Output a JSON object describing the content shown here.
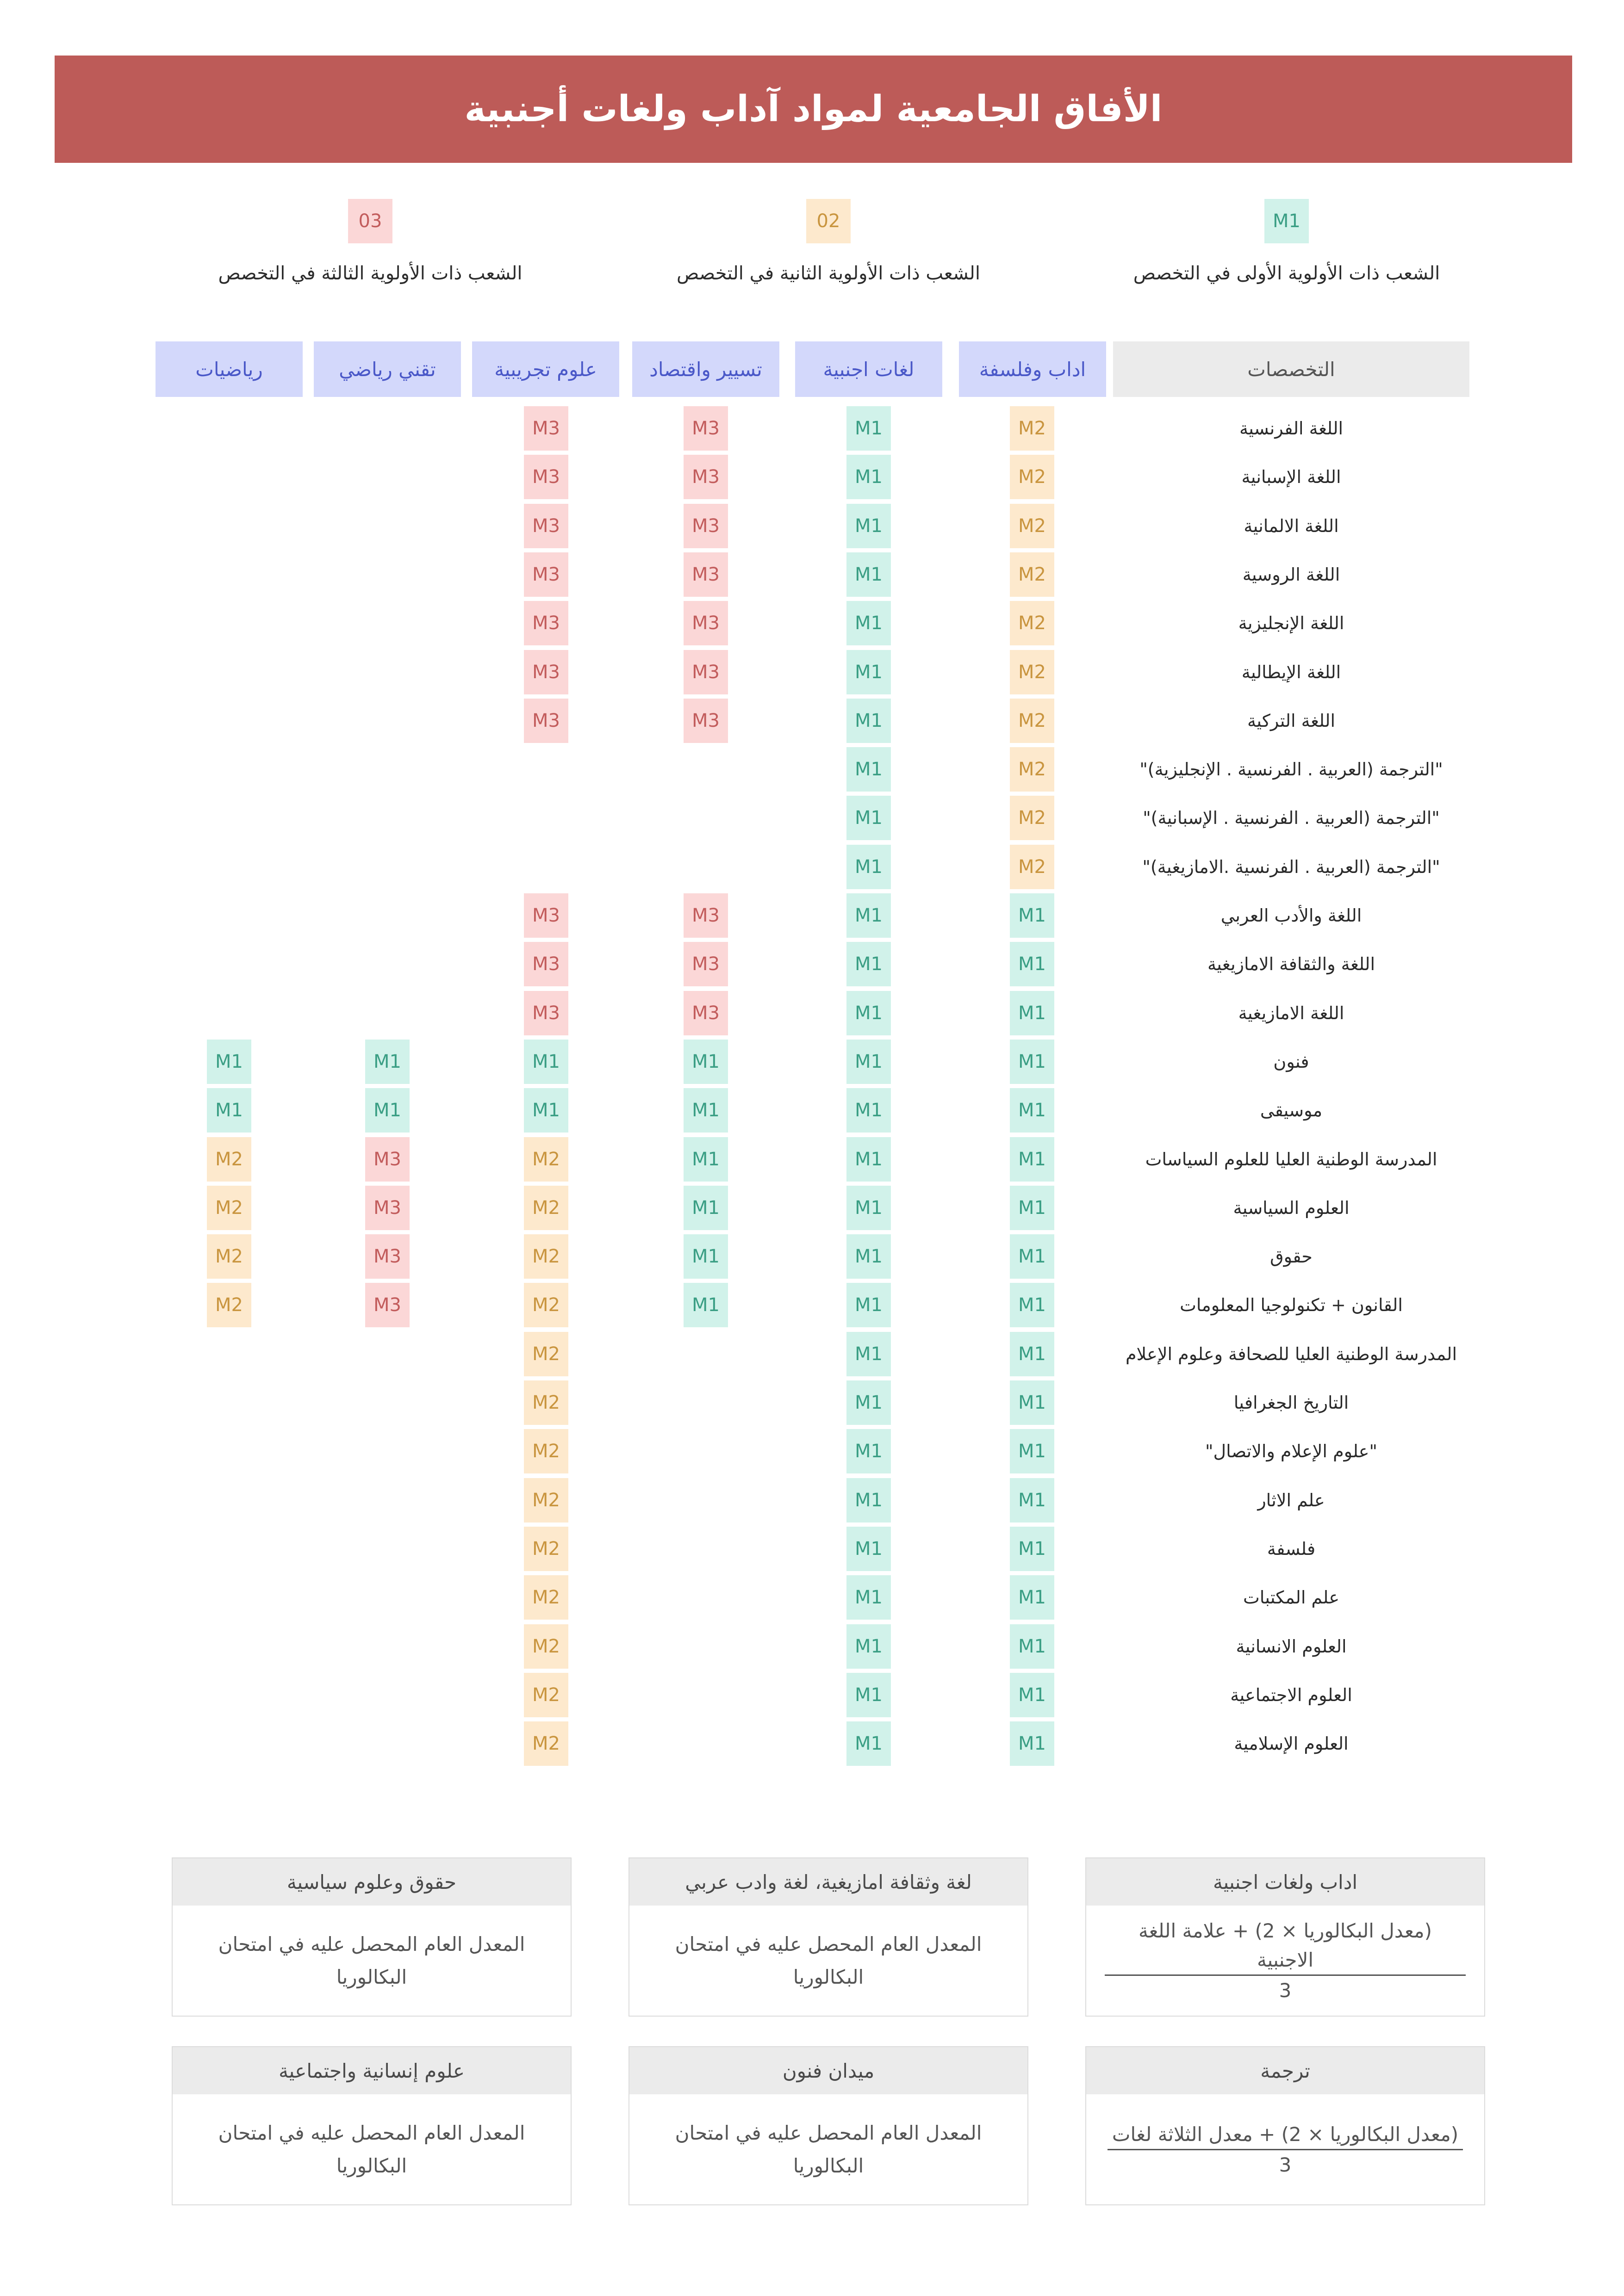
{
  "title": "الأفاق الجامعية لمواد آداب ولغات أجنبية",
  "legend": [
    {
      "badge": "M1",
      "caption": "الشعب ذات الأولوية الأولى في التخصص"
    },
    {
      "badge": "02",
      "caption": "الشعب ذات الأولوية الثانية في التخصص"
    },
    {
      "badge": "03",
      "caption": "الشعب ذات الأولوية الثالثة في التخصص"
    }
  ],
  "headers": {
    "specialties": "التخصصات",
    "columns": [
      "اداب وفلسفة",
      "لغات اجنبية",
      "تسيير واقتصاد",
      "علوم تجريبية",
      "تقني رياضي",
      "رياضيات"
    ]
  },
  "rows": [
    {
      "label": "اللغة الفرنسية",
      "values": [
        "M2",
        "M1",
        "M3",
        "M3",
        "",
        ""
      ]
    },
    {
      "label": "اللغة الإسبانية",
      "values": [
        "M2",
        "M1",
        "M3",
        "M3",
        "",
        ""
      ]
    },
    {
      "label": "اللغة الالمانية",
      "values": [
        "M2",
        "M1",
        "M3",
        "M3",
        "",
        ""
      ]
    },
    {
      "label": "اللغة الروسية",
      "values": [
        "M2",
        "M1",
        "M3",
        "M3",
        "",
        ""
      ]
    },
    {
      "label": "اللغة الإنجليزية",
      "values": [
        "M2",
        "M1",
        "M3",
        "M3",
        "",
        ""
      ]
    },
    {
      "label": "اللغة الإيطالية",
      "values": [
        "M2",
        "M1",
        "M3",
        "M3",
        "",
        ""
      ]
    },
    {
      "label": "اللغة التركية",
      "values": [
        "M2",
        "M1",
        "M3",
        "M3",
        "",
        ""
      ]
    },
    {
      "label": "\"الترجمة (العربية . الفرنسية . الإنجليزية)\"",
      "values": [
        "M2",
        "M1",
        "",
        "",
        "",
        ""
      ]
    },
    {
      "label": "\"الترجمة (العربية . الفرنسية . الإسبانية)\"",
      "values": [
        "M2",
        "M1",
        "",
        "",
        "",
        ""
      ]
    },
    {
      "label": "\"الترجمة (العربية . الفرنسية .الامازيغية)\"",
      "values": [
        "M2",
        "M1",
        "",
        "",
        "",
        ""
      ]
    },
    {
      "label": "اللغة والأدب العربي",
      "values": [
        "M1",
        "M1",
        "M3",
        "M3",
        "",
        ""
      ]
    },
    {
      "label": "اللغة والثقافة الامازيغية",
      "values": [
        "M1",
        "M1",
        "M3",
        "M3",
        "",
        ""
      ]
    },
    {
      "label": "اللغة الامازيغية",
      "values": [
        "M1",
        "M1",
        "M3",
        "M3",
        "",
        ""
      ]
    },
    {
      "label": "فنون",
      "values": [
        "M1",
        "M1",
        "M1",
        "M1",
        "M1",
        "M1"
      ]
    },
    {
      "label": "موسيقى",
      "values": [
        "M1",
        "M1",
        "M1",
        "M1",
        "M1",
        "M1"
      ]
    },
    {
      "label": "المدرسة الوطنية العليا للعلوم السياسات",
      "values": [
        "M1",
        "M1",
        "M1",
        "M2",
        "M3",
        "M2"
      ]
    },
    {
      "label": "العلوم السياسية",
      "values": [
        "M1",
        "M1",
        "M1",
        "M2",
        "M3",
        "M2"
      ]
    },
    {
      "label": "حقوق",
      "values": [
        "M1",
        "M1",
        "M1",
        "M2",
        "M3",
        "M2"
      ]
    },
    {
      "label": "القانون + تكنولوجيا المعلومات",
      "values": [
        "M1",
        "M1",
        "M1",
        "M2",
        "M3",
        "M2"
      ]
    },
    {
      "label": "المدرسة الوطنية العليا للصحافة وعلوم الإعلام",
      "values": [
        "M1",
        "M1",
        "",
        "M2",
        "",
        ""
      ]
    },
    {
      "label": "التاريخ الجغرافيا",
      "values": [
        "M1",
        "M1",
        "",
        "M2",
        "",
        ""
      ]
    },
    {
      "label": "\"علوم الإعلام والاتصال\"",
      "values": [
        "M1",
        "M1",
        "",
        "M2",
        "",
        ""
      ]
    },
    {
      "label": "علم الاثار",
      "values": [
        "M1",
        "M1",
        "",
        "M2",
        "",
        ""
      ]
    },
    {
      "label": "فلسفة",
      "values": [
        "M1",
        "M1",
        "",
        "M2",
        "",
        ""
      ]
    },
    {
      "label": "علم المكتبات",
      "values": [
        "M1",
        "M1",
        "",
        "M2",
        "",
        ""
      ]
    },
    {
      "label": "العلوم الانسانية",
      "values": [
        "M1",
        "M1",
        "",
        "M2",
        "",
        ""
      ]
    },
    {
      "label": "العلوم الاجتماعية",
      "values": [
        "M1",
        "M1",
        "",
        "M2",
        "",
        ""
      ]
    },
    {
      "label": "العلوم الإسلامية",
      "values": [
        "M1",
        "M1",
        "",
        "M2",
        "",
        ""
      ]
    }
  ],
  "formulas": [
    {
      "title": "اداب ولغات اجنبية",
      "numerator": "(معدل البكالوريا × 2) + علامة اللغة الاجنبية",
      "denominator": "3"
    },
    {
      "title": "لغة وثقافة امازيغية، لغة وادب عربي",
      "text": "المعدل العام المحصل عليه في امتحان البكالوريا"
    },
    {
      "title": "حقوق وعلوم سياسية",
      "text": "المعدل العام المحصل عليه في امتحان البكالوريا"
    },
    {
      "title": "ترجمة",
      "numerator": "(معدل البكالوريا × 2) + معدل الثلاثة لغات",
      "denominator": "3"
    },
    {
      "title": "ميدان فنون",
      "text": "المعدل العام المحصل عليه في امتحان البكالوريا"
    },
    {
      "title": "علوم إنسانية واجتماعية",
      "text": "المعدل العام المحصل عليه في امتحان البكالوريا"
    }
  ],
  "colors": {
    "banner": "#bd5b58",
    "column_header": "#d3d8fb",
    "M1": "#d1f2ea",
    "M2": "#fde9cd",
    "M3": "#fbd7d7"
  }
}
